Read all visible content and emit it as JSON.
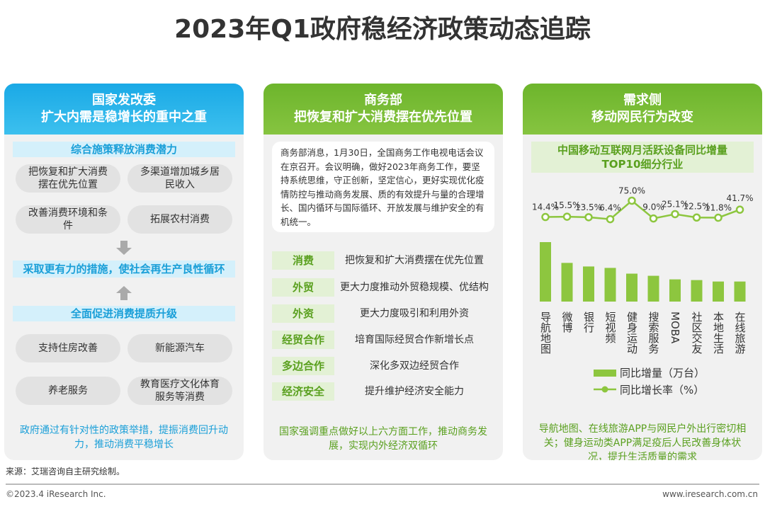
{
  "title": "2023年Q1政府稳经济政策动态追踪",
  "ndrc": {
    "header_1": "国家发改委",
    "header_2": "扩大内需是稳增长的重中之重",
    "section_1": "综合施策释放消费潜力",
    "items_1": [
      "把恢复和扩大消费摆在优先位置",
      "多渠道增加城乡居民收入",
      "改善消费环境和条件",
      "拓展农村消费"
    ],
    "section_2": "采取更有力的措施，使社会再生产良性循环",
    "section_3": "全面促进消费提质升级",
    "items_3": [
      "支持住房改善",
      "新能源汽车",
      "养老服务",
      "教育医疗文化体育服务等消费"
    ],
    "summary": "政府通过有针对性的政策举措，提振消费回升动力，推动消费平稳增长"
  },
  "mofcom": {
    "header_1": "商务部",
    "header_2": "把恢复和扩大消费摆在优先位置",
    "notice": "商务部消息，1月30日，全国商务工作电视电话会议在京召开。会议明确，做好2023年商务工作，要坚持系统思维，守正创新，坚定信心，更好实现优化疫情防控与推动商务发展、质的有效提升与量的合理增长、国内循环与国际循环、开放发展与维护安全的有机统一。",
    "policies": [
      {
        "tag": "消费",
        "text": "把恢复和扩大消费摆在优先位置"
      },
      {
        "tag": "外贸",
        "text": "更大力度推动外贸稳规模、优结构"
      },
      {
        "tag": "外资",
        "text": "更大力度吸引和利用外资"
      },
      {
        "tag": "经贸合作",
        "text": "培育国际经贸合作新增长点"
      },
      {
        "tag": "多边合作",
        "text": "深化多双边经贸合作"
      },
      {
        "tag": "经济安全",
        "text": "提升维护经济安全能力"
      }
    ],
    "summary": "国家强调重点做好以上六方面工作，推动商务发展，实现内外经济双循环"
  },
  "demand": {
    "header_1": "需求侧",
    "header_2": "移动网民行为改变",
    "summary": "导航地图、在线旅游APP与网民户外出行密切相关；健身运动类APP满足疫后人民改善身体状况，提升生活质量的需求"
  },
  "chart_data": {
    "type": "combo",
    "title": "中国移动互联网月活跃设备同比增量TOP10细分行业",
    "categories": [
      "导航地图",
      "微博",
      "银行",
      "短视频",
      "健身运动",
      "搜索服务",
      "MOBA",
      "社区交友",
      "本地生活",
      "在线旅游"
    ],
    "series": [
      {
        "name": "同比增量（万台）",
        "kind": "bar",
        "color": "#8dc63f",
        "values": [
          83,
          54,
          49,
          47,
          39,
          36,
          31,
          30,
          28,
          28
        ]
      },
      {
        "name": "同比增长率（%）",
        "kind": "line",
        "color": "#8dc63f",
        "values": [
          14.4,
          15.5,
          13.5,
          6.4,
          75.0,
          9.0,
          25.1,
          12.5,
          11.8,
          41.7
        ],
        "value_labels": [
          "14.4%",
          "15.5%",
          "13.5%",
          "6.4%",
          "75.0%",
          "9.0%",
          "25.1%",
          "12.5%",
          "11.8%",
          "41.7%"
        ]
      }
    ]
  },
  "footer": {
    "source": "来源：艾瑞咨询自主研究绘制。",
    "copyright": "©2023.4 iResearch Inc.",
    "website": "www.iresearch.com.cn"
  }
}
